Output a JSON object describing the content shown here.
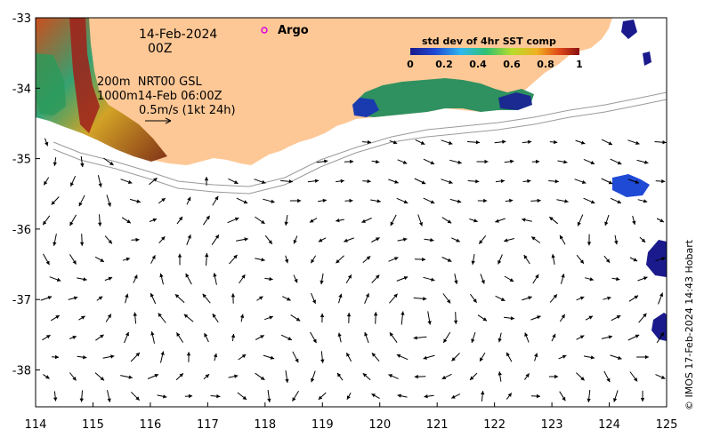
{
  "map": {
    "date_line1": "14-Feb-2024",
    "date_line2": "00Z",
    "legend_argo": "Argo",
    "isobath_line1": "200m  NRT00 GSL",
    "isobath_line2": "1000m14-Feb 06:00Z",
    "vector_scale": "0.5m/s (1kt 24h)",
    "colorbar_title": "std dev of 4hr SST comp",
    "colorbar_ticks": [
      "0",
      "0.2",
      "0.4",
      "0.6",
      "0.8",
      "1"
    ],
    "credit": "© IMOS 17-Feb-2024 14:43 Hobart",
    "x_ticks": [
      "114",
      "115",
      "116",
      "117",
      "118",
      "119",
      "120",
      "121",
      "122",
      "123",
      "124",
      "125"
    ],
    "y_ticks": [
      "-33",
      "-34",
      "-35",
      "-36",
      "-37",
      "-38"
    ],
    "colors": {
      "land": "#fdc896",
      "ocean": "#ffffff",
      "isobath": "#999999",
      "argo_marker": "#e000e0"
    }
  }
}
